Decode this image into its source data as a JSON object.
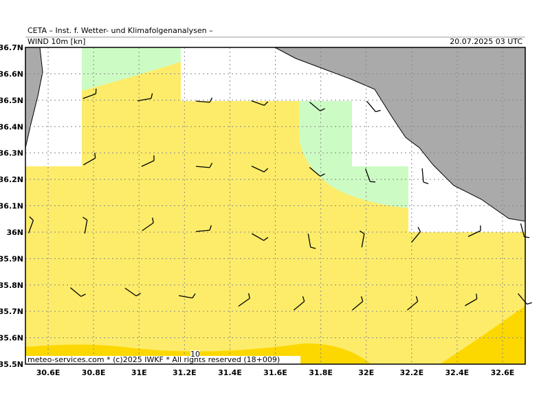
{
  "header": {
    "title": "CETA – Inst. f. Wetter- und Klimafolgenanalysen –",
    "parameter": "WIND 10m [kn]",
    "valid_time": "20.07.2025 03 UTC"
  },
  "map": {
    "lon_range": [
      30.5,
      32.7
    ],
    "lat_range": [
      35.5,
      36.7
    ],
    "lon_ticks": [
      {
        "value": 30.6,
        "label": "30.6E"
      },
      {
        "value": 30.8,
        "label": "30.8E"
      },
      {
        "value": 31,
        "label": "31E"
      },
      {
        "value": 31.2,
        "label": "31.2E"
      },
      {
        "value": 31.4,
        "label": "31.4E"
      },
      {
        "value": 31.6,
        "label": "31.6E"
      },
      {
        "value": 31.8,
        "label": "31.8E"
      },
      {
        "value": 32,
        "label": "32E"
      },
      {
        "value": 32.2,
        "label": "32.2E"
      },
      {
        "value": 32.4,
        "label": "32.4E"
      },
      {
        "value": 32.6,
        "label": "32.6E"
      }
    ],
    "lat_ticks": [
      {
        "value": 36.7,
        "label": "36.7N"
      },
      {
        "value": 36.6,
        "label": "36.6N"
      },
      {
        "value": 36.5,
        "label": "36.5N"
      },
      {
        "value": 36.4,
        "label": "36.4N"
      },
      {
        "value": 36.3,
        "label": "36.3N"
      },
      {
        "value": 36.2,
        "label": "36.2N"
      },
      {
        "value": 36.1,
        "label": "36.1N"
      },
      {
        "value": 36,
        "label": "36N"
      },
      {
        "value": 35.9,
        "label": "35.9N"
      },
      {
        "value": 35.8,
        "label": "35.8N"
      },
      {
        "value": 35.7,
        "label": "35.7N"
      },
      {
        "value": 35.6,
        "label": "35.6N"
      },
      {
        "value": 35.5,
        "label": "35.5N"
      }
    ],
    "contour_label": 10
  },
  "footer": "meteo-services.com * (c)2025 IWKF * All rights reserved (18+009)"
}
